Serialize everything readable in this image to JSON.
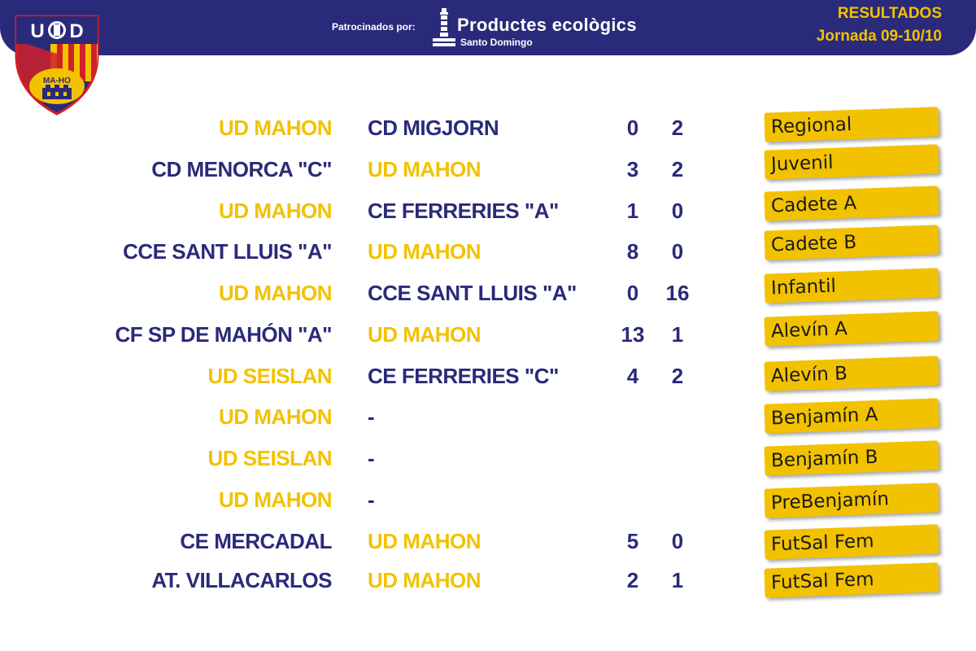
{
  "header": {
    "sponsor_label": "Patrocinados por:",
    "sponsor_name": "Productes ecològics",
    "sponsor_sub": "Santo Domingo",
    "title": "RESULTADOS",
    "round": "Jornada 09-10/10"
  },
  "crest": {
    "letters": "UD",
    "city": "MA-HO"
  },
  "colors": {
    "navy": "#2a2a7a",
    "gold": "#f2c200",
    "red": "#d0202a"
  },
  "matches": [
    {
      "home": "UD MAHON",
      "away": "CD MIGJORN",
      "home_score": "0",
      "away_score": "2",
      "category": "Regional",
      "home_color": "gold",
      "away_color": "blue"
    },
    {
      "home": "CD MENORCA \"C\"",
      "away": "UD MAHON",
      "home_score": "3",
      "away_score": "2",
      "category": "Juvenil",
      "home_color": "blue",
      "away_color": "gold"
    },
    {
      "home": "UD MAHON",
      "away": "CE FERRERIES \"A\"",
      "home_score": "1",
      "away_score": "0",
      "category": "Cadete A",
      "home_color": "gold",
      "away_color": "blue"
    },
    {
      "home": "CCE SANT LLUIS \"A\"",
      "away": "UD MAHON",
      "home_score": "8",
      "away_score": "0",
      "category": "Cadete B",
      "home_color": "blue",
      "away_color": "gold"
    },
    {
      "home": "UD MAHON",
      "away": "CCE SANT LLUIS \"A\"",
      "home_score": "0",
      "away_score": "16",
      "category": "Infantil",
      "home_color": "gold",
      "away_color": "blue"
    },
    {
      "home": "CF SP DE MAHÓN \"A\"",
      "away": "UD MAHON",
      "home_score": "13",
      "away_score": "1",
      "category": "Alevín A",
      "home_color": "blue",
      "away_color": "gold"
    },
    {
      "home": "UD SEISLAN",
      "away": "CE FERRERIES \"C\"",
      "home_score": "4",
      "away_score": "2",
      "category": "Alevín B",
      "home_color": "gold",
      "away_color": "blue"
    },
    {
      "home": "UD MAHON",
      "away": "-",
      "home_score": "",
      "away_score": "",
      "category": "Benjamín A",
      "home_color": "gold",
      "away_color": "blue"
    },
    {
      "home": "UD SEISLAN",
      "away": "-",
      "home_score": "",
      "away_score": "",
      "category": "Benjamín B",
      "home_color": "gold",
      "away_color": "blue"
    },
    {
      "home": "UD MAHON",
      "away": "-",
      "home_score": "",
      "away_score": "",
      "category": "PreBenjamín",
      "home_color": "gold",
      "away_color": "blue"
    },
    {
      "home": "CE MERCADAL",
      "away": "UD MAHON",
      "home_score": "5",
      "away_score": "0",
      "category": "FutSal Fem",
      "home_color": "blue",
      "away_color": "gold"
    },
    {
      "home": "AT. VILLACARLOS",
      "away": "UD MAHON",
      "home_score": "2",
      "away_score": "1",
      "category": "FutSal Fem",
      "home_color": "blue",
      "away_color": "gold"
    }
  ]
}
